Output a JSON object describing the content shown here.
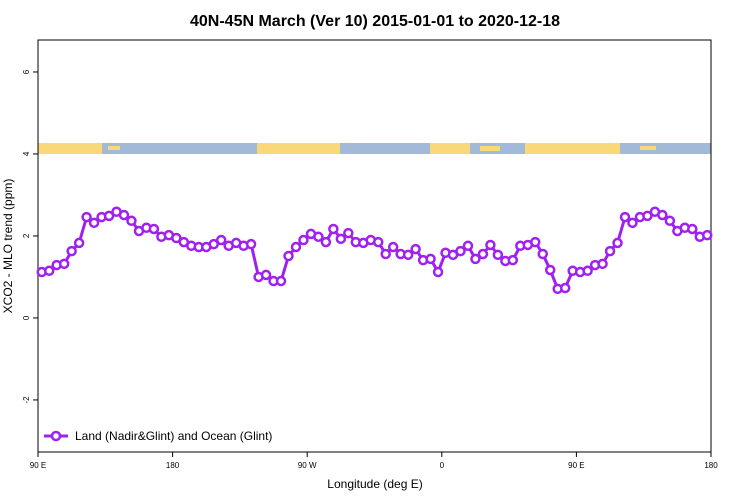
{
  "chart_data": {
    "type": "line",
    "title": "40N-45N March (Ver 10)   2015-01-01 to 2020-12-18",
    "x_label": "Longitude (deg E)",
    "y_label": "XCO2 - MLO trend (ppm)",
    "x": [
      92.5,
      97.5,
      102.5,
      107.5,
      112.5,
      117.5,
      122.5,
      127.5,
      132.5,
      137.5,
      142.5,
      147.5,
      152.5,
      157.5,
      162.5,
      167.5,
      172.5,
      177.5,
      182.5,
      187.5,
      192.5,
      197.5,
      202.5,
      207.5,
      212.5,
      217.5,
      222.5,
      227.5,
      232.5,
      237.5,
      242.5,
      247.5,
      252.5,
      257.5,
      262.5,
      267.5,
      272.5,
      277.5,
      282.5,
      287.5,
      292.5,
      297.5,
      302.5,
      307.5,
      312.5,
      317.5,
      322.5,
      327.5,
      332.5,
      337.5,
      342.5,
      347.5,
      352.5,
      357.5,
      362.5,
      367.5,
      372.5,
      377.5,
      382.5,
      387.5,
      392.5,
      397.5,
      402.5,
      407.5,
      412.5,
      417.5,
      422.5,
      427.5,
      432.5,
      437.5,
      442.5,
      447.5,
      452.5,
      457.5,
      462.5,
      467.5,
      472.5,
      477.5,
      482.5,
      487.5,
      492.5,
      497.5,
      502.5,
      507.5,
      512.5,
      517.5,
      522.5,
      527.5,
      532.5,
      537.5
    ],
    "series": [
      {
        "name": "Land (Nadir&Glint) and Ocean (Glint)",
        "color": "#a020f0",
        "values": [
          1.12,
          1.15,
          1.29,
          1.32,
          1.63,
          1.83,
          2.46,
          2.32,
          2.46,
          2.49,
          2.59,
          2.51,
          2.37,
          2.12,
          2.2,
          2.17,
          1.98,
          2.02,
          1.95,
          1.85,
          1.76,
          1.73,
          1.73,
          1.8,
          1.9,
          1.76,
          1.83,
          1.76,
          1.8,
          1.0,
          1.05,
          0.9,
          0.9,
          1.51,
          1.73,
          1.9,
          2.05,
          1.98,
          1.85,
          2.17,
          1.93,
          2.07,
          1.85,
          1.83,
          1.9,
          1.85,
          1.56,
          1.73,
          1.56,
          1.54,
          1.68,
          1.41,
          1.44,
          1.12,
          1.59,
          1.54,
          1.63,
          1.76,
          1.44,
          1.56,
          1.78,
          1.54,
          1.39,
          1.41,
          1.76,
          1.78,
          1.85,
          1.56,
          1.17,
          0.71,
          0.73,
          1.15,
          1.12,
          1.15,
          1.29,
          1.32,
          1.63,
          1.83,
          2.46,
          2.32,
          2.46,
          2.49,
          2.59,
          2.51,
          2.37,
          2.12,
          2.2,
          2.17,
          1.98,
          2.02
        ]
      }
    ],
    "xlim": [
      90,
      540
    ],
    "xticks": [
      {
        "value": 90,
        "label": "90 E"
      },
      180,
      {
        "value": 270,
        "label": "90 W"
      },
      {
        "value": 360,
        "label": "0"
      },
      {
        "value": 450,
        "label": "90 E"
      },
      {
        "value": 540,
        "label": "180"
      }
    ],
    "ylim": [
      -3.27,
      6.78
    ],
    "yticks": [
      -2,
      0,
      2,
      4,
      6
    ],
    "legend": "bottom-left"
  }
}
